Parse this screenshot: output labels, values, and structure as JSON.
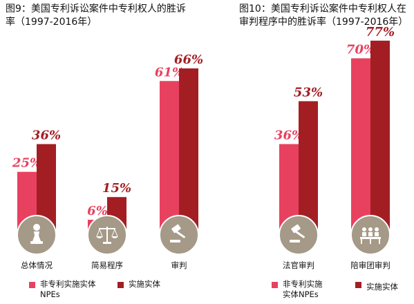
{
  "chart_data": [
    {
      "type": "bar",
      "title": "图9：美国专利诉讼案件中专利权人的胜诉率（1997-2016年）",
      "categories": [
        "总体情况",
        "简易程序",
        "审判"
      ],
      "icons": [
        "chess-pawn-icon",
        "scales-icon",
        "gavel-icon"
      ],
      "series": [
        {
          "name": "非专利实施实体NPEs",
          "values": [
            25,
            6,
            61
          ],
          "labels": [
            "25%",
            "6%",
            "61%"
          ],
          "color": "#e8415f"
        },
        {
          "name": "实施实体",
          "values": [
            36,
            15,
            66
          ],
          "labels": [
            "36%",
            "15%",
            "66%"
          ],
          "color": "#a31e23"
        }
      ],
      "legend": [
        "非专利实施实体",
        "NPEs",
        "实施实体"
      ],
      "ylim": [
        0,
        80
      ]
    },
    {
      "type": "bar",
      "title": "图10：美国专利诉讼案件中专利权人在审判程序中的胜诉率（1997-2016年）",
      "categories": [
        "法官审判",
        "陪审团审判"
      ],
      "icons": [
        "gavel-icon",
        "jury-icon"
      ],
      "series": [
        {
          "name": "非专利实施实体NPEs",
          "values": [
            36,
            70
          ],
          "labels": [
            "36%",
            "70%"
          ],
          "color": "#e8415f"
        },
        {
          "name": "实施实体",
          "values": [
            53,
            77
          ],
          "labels": [
            "53%",
            "77%"
          ],
          "color": "#a31e23"
        }
      ],
      "legend": [
        "非专利实施",
        "实体NPEs",
        "实施实体"
      ],
      "ylim": [
        0,
        80
      ]
    }
  ],
  "titles": {
    "fig9_line1": "图9：美国专利诉讼案件中专利权人的胜诉",
    "fig9_line2": "率（1997-2016年）",
    "fig10_line1": "图10：美国专利诉讼案件中专利权人在",
    "fig10_line2": "审判程序中的胜诉率（1997-2016年）"
  },
  "colors": {
    "npe": "#e8415f",
    "practicing": "#a31e23",
    "icon_circle": "#a59987"
  }
}
